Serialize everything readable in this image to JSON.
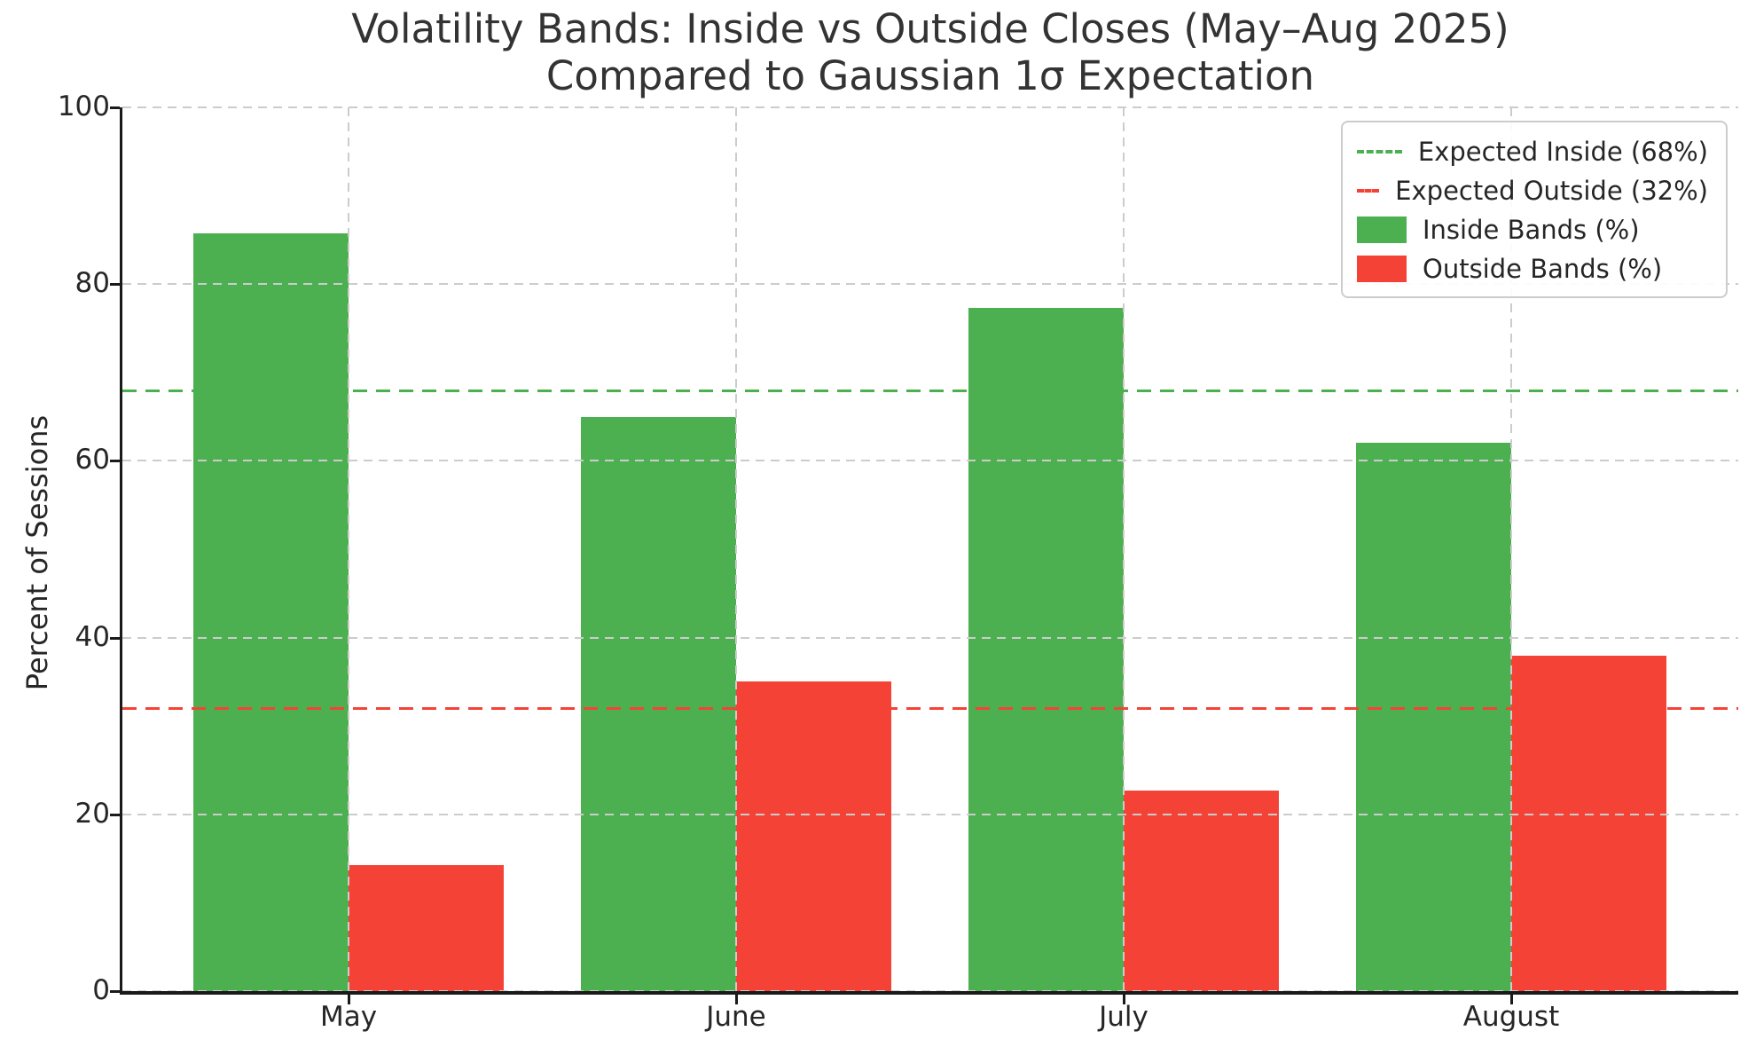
{
  "chart_data": {
    "type": "bar",
    "title": "Volatility Bands: Inside vs Outside Closes (May–Aug 2025)",
    "subtitle": "Compared to Gaussian 1σ Expectation",
    "ylabel": "Percent of Sessions",
    "xlabel": "",
    "categories": [
      "May",
      "June",
      "July",
      "August"
    ],
    "series": [
      {
        "name": "Inside Bands (%)",
        "color": "#4caf50",
        "values": [
          85.7,
          65,
          77.3,
          62
        ]
      },
      {
        "name": "Outside Bands (%)",
        "color": "#f44336",
        "values": [
          14.3,
          35,
          22.7,
          38
        ]
      }
    ],
    "reference_lines": [
      {
        "label": "Expected Inside (68%)",
        "value": 68,
        "color": "#4caf50",
        "style": "dashed"
      },
      {
        "label": "Expected Outside (32%)",
        "value": 32,
        "color": "#f44336",
        "style": "dashed"
      }
    ],
    "ylim": [
      0,
      100
    ],
    "yticks": [
      0,
      20,
      40,
      60,
      80,
      100
    ],
    "grid": true,
    "legend_position": "upper right",
    "colors": {
      "inside": "#4caf50",
      "outside": "#f44336",
      "gridline": "#cccccc",
      "axis": "#1a1a1a",
      "text": "#262626"
    }
  }
}
